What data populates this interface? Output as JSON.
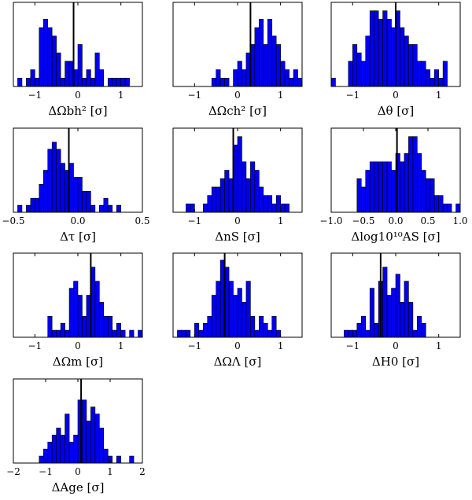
{
  "chart_data": [
    {
      "type": "bar",
      "xlabel": "ΔΩbh² [σ]",
      "xlim": [
        -1.5,
        1.5
      ],
      "xticks": [
        "-1",
        "0",
        "1"
      ],
      "xtick_values": [
        -1,
        0,
        1
      ],
      "ylim": [
        0,
        10
      ],
      "bin_start": -1.5,
      "bin_width": 0.1,
      "counts": [
        0,
        1,
        0,
        1,
        2,
        1,
        7,
        8,
        7,
        6,
        4,
        1,
        3,
        3,
        2,
        5,
        1,
        2,
        1,
        4,
        2,
        0,
        1,
        1,
        1,
        1,
        1,
        0,
        0,
        0
      ],
      "vline": -0.1
    },
    {
      "type": "bar",
      "xlabel": "ΔΩch² [σ]",
      "xlim": [
        -1.5,
        1.5
      ],
      "xticks": [
        "-1",
        "0",
        "1"
      ],
      "xtick_values": [
        -1,
        0,
        1
      ],
      "ylim": [
        0,
        10
      ],
      "bin_start": -1.5,
      "bin_width": 0.1,
      "counts": [
        0,
        0,
        0,
        0,
        0,
        0,
        0,
        0,
        0,
        1,
        2,
        1,
        1,
        0,
        2,
        3,
        2,
        4,
        5,
        7,
        8,
        5,
        8,
        6,
        5,
        3,
        2,
        1,
        2,
        1
      ],
      "vline": 0.3
    },
    {
      "type": "bar",
      "xlabel": "Δθ [σ]",
      "xlim": [
        -1.5,
        1.5
      ],
      "xticks": [
        "-1",
        "0",
        "1"
      ],
      "xtick_values": [
        -1,
        0,
        1
      ],
      "ylim": [
        0,
        10
      ],
      "bin_start": -1.5,
      "bin_width": 0.1,
      "counts": [
        1,
        0,
        0,
        0,
        3,
        5,
        4,
        3,
        6,
        9,
        9,
        8,
        9,
        8,
        7,
        9,
        7,
        6,
        5,
        5,
        3,
        3,
        2,
        1,
        2,
        1,
        3,
        0,
        0,
        0
      ],
      "vline": 0.0
    },
    {
      "type": "bar",
      "xlabel": "Δτ [σ]",
      "xlim": [
        -0.5,
        0.5
      ],
      "xticks": [
        "-0.5",
        "0.0",
        "0.5"
      ],
      "xtick_values": [
        -0.5,
        0.0,
        0.5
      ],
      "ylim": [
        0,
        12
      ],
      "bin_start": -0.5,
      "bin_width": 0.033333,
      "counts": [
        0,
        1,
        0,
        1,
        2,
        2,
        4,
        6,
        9,
        10,
        9,
        7,
        6,
        7,
        5,
        5,
        3,
        3,
        1,
        0,
        1,
        2,
        1,
        0,
        1,
        0,
        0,
        0,
        0,
        0
      ],
      "vline": -0.07
    },
    {
      "type": "bar",
      "xlabel": "ΔnS [σ]",
      "xlim": [
        -1.5,
        1.5
      ],
      "xticks": [
        "-1",
        "0",
        "1"
      ],
      "xtick_values": [
        -1,
        0,
        1
      ],
      "ylim": [
        0,
        10
      ],
      "bin_start": -1.5,
      "bin_width": 0.1,
      "counts": [
        0,
        0,
        0,
        1,
        1,
        0,
        0,
        1,
        2,
        3,
        3,
        4,
        5,
        4,
        8,
        9,
        6,
        4,
        6,
        5,
        3,
        2,
        2,
        1,
        2,
        1,
        1,
        0,
        0,
        0
      ],
      "vline": -0.1
    },
    {
      "type": "bar",
      "xlabel": "Δlog10¹⁰AS [σ]",
      "xlim": [
        -1.0,
        1.0
      ],
      "xticks": [
        "-1.0",
        "-0.5",
        "0.0",
        "0.5",
        "1.0"
      ],
      "xtick_values": [
        -1.0,
        -0.5,
        0.0,
        0.5,
        1.0
      ],
      "ylim": [
        0,
        10
      ],
      "bin_start": -1.0,
      "bin_width": 0.066667,
      "counts": [
        0,
        0,
        0,
        0,
        0,
        0,
        4,
        3,
        5,
        6,
        6,
        6,
        6,
        6,
        5,
        7,
        6,
        7,
        9,
        9,
        7,
        5,
        4,
        4,
        2,
        2,
        1,
        1,
        0,
        1
      ],
      "vline": 0.02
    },
    {
      "type": "bar",
      "xlabel": "ΔΩm [σ]",
      "xlim": [
        -1.5,
        1.5
      ],
      "xticks": [
        "-1",
        "0",
        "1"
      ],
      "xtick_values": [
        -1,
        0,
        1
      ],
      "ylim": [
        0,
        12
      ],
      "bin_start": -1.5,
      "bin_width": 0.1,
      "counts": [
        0,
        0,
        0,
        0,
        0,
        0,
        0,
        0,
        3,
        1,
        1,
        2,
        1,
        7,
        8,
        6,
        3,
        6,
        10,
        8,
        5,
        3,
        3,
        1,
        2,
        1,
        0,
        1,
        0,
        1
      ],
      "vline": 0.3
    },
    {
      "type": "bar",
      "xlabel": "ΔΩΛ [σ]",
      "xlim": [
        -1.5,
        1.5
      ],
      "xticks": [
        "-1",
        "0",
        "1"
      ],
      "xtick_values": [
        -1,
        0,
        1
      ],
      "ylim": [
        0,
        12
      ],
      "bin_start": -1.5,
      "bin_width": 0.1,
      "counts": [
        0,
        1,
        1,
        1,
        0,
        2,
        1,
        2,
        3,
        6,
        8,
        11,
        10,
        8,
        6,
        7,
        5,
        8,
        3,
        1,
        3,
        2,
        1,
        3,
        1,
        0,
        0,
        0,
        0,
        0
      ],
      "vline": -0.3
    },
    {
      "type": "bar",
      "xlabel": "ΔH0 [σ]",
      "xlim": [
        -1.5,
        1.5
      ],
      "xticks": [
        "-1",
        "0",
        "1"
      ],
      "xtick_values": [
        -1,
        0,
        1
      ],
      "ylim": [
        0,
        12
      ],
      "bin_start": -1.5,
      "bin_width": 0.1,
      "counts": [
        0,
        0,
        0,
        1,
        1,
        1,
        2,
        3,
        1,
        7,
        2,
        8,
        10,
        6,
        7,
        9,
        5,
        8,
        5,
        1,
        3,
        2,
        0,
        0,
        0,
        0,
        0,
        0,
        0,
        0
      ],
      "vline": -0.35
    },
    {
      "type": "bar",
      "xlabel": "ΔAge [σ]",
      "xlim": [
        -2.0,
        2.0
      ],
      "xticks": [
        "-2",
        "-1",
        "0",
        "1",
        "2"
      ],
      "xtick_values": [
        -2,
        -1,
        0,
        1,
        2
      ],
      "ylim": [
        0,
        12
      ],
      "bin_start": -2.0,
      "bin_width": 0.133333,
      "counts": [
        0,
        0,
        0,
        0,
        0,
        0,
        1,
        2,
        3,
        4,
        5,
        4,
        7,
        3,
        4,
        9,
        9,
        6,
        8,
        7,
        5,
        2,
        1,
        0,
        1,
        0,
        0,
        1,
        0,
        0
      ],
      "vline": 0.1
    }
  ]
}
